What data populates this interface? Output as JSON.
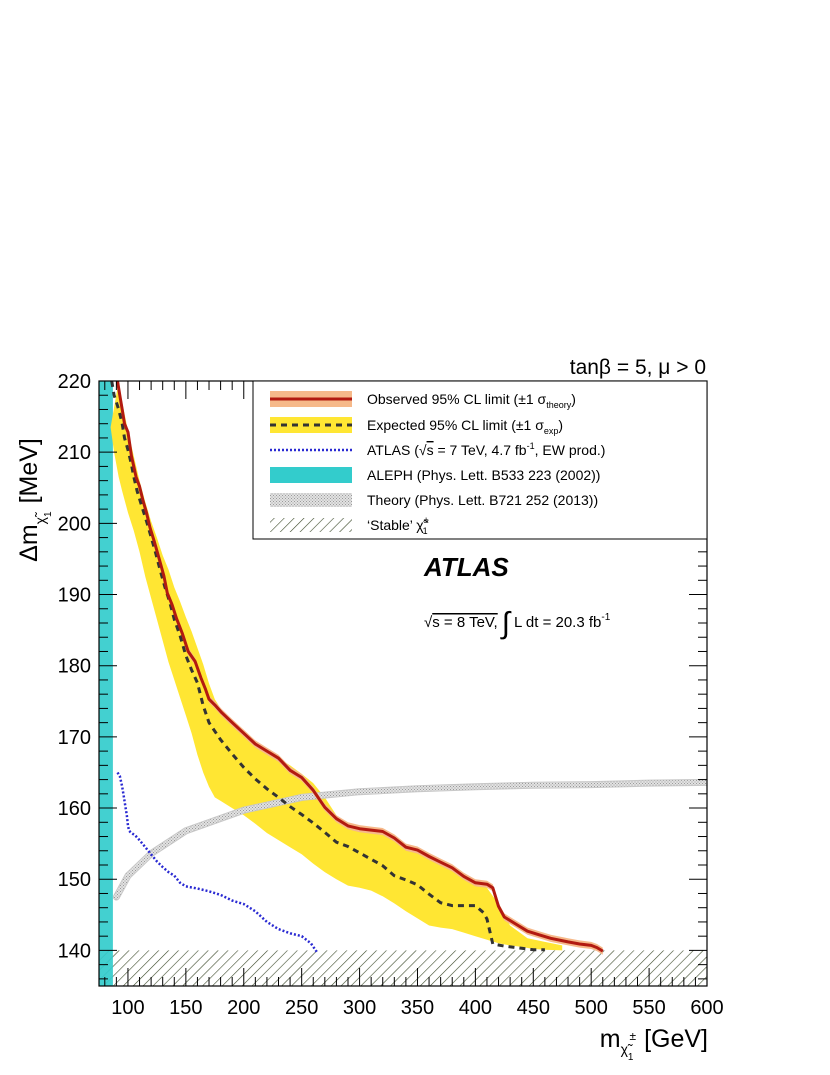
{
  "chart_data": {
    "type": "line",
    "top_label": "tanβ = 5, μ > 0",
    "xlabel": {
      "base": "m",
      "sub": "χ̃",
      "subsub": "1",
      "sup": "±",
      "unit": "[GeV]"
    },
    "ylabel": {
      "base": "Δm",
      "sub": "χ̃",
      "subsub": "1",
      "unit": "[MeV]"
    },
    "xlim": [
      75,
      600
    ],
    "ylim": [
      135,
      220
    ],
    "x_ticks": [
      100,
      150,
      200,
      250,
      300,
      350,
      400,
      450,
      500,
      550,
      600
    ],
    "y_ticks": [
      140,
      150,
      160,
      170,
      180,
      190,
      200,
      210,
      220
    ],
    "atlas_label": "ATLAS",
    "energy_label": {
      "sqrt_s": "s = 8 TeV,",
      "lumi": "L dt = 20.3 fb",
      "lumi_sup": "-1"
    },
    "legend": {
      "position": "top-right",
      "entries": [
        {
          "key": "observed",
          "label": "Observed 95% CL limit (±1 σ",
          "sub": "theory",
          "tail": ")"
        },
        {
          "key": "expected",
          "label": "Expected 95% CL limit (±1 σ",
          "sub": "exp",
          "tail": ")"
        },
        {
          "key": "atlas7",
          "label": "ATLAS (",
          "sqrt": "s",
          "mid": " = 7 TeV, 4.7 fb",
          "sup": "-1",
          "tail": ", EW prod.)"
        },
        {
          "key": "aleph",
          "label": "ALEPH (Phys. Lett. B533 223 (2002))"
        },
        {
          "key": "theory",
          "label": "Theory (Phys. Lett. B721 252 (2013))"
        },
        {
          "key": "stable",
          "label": "‘Stable’ χ̃",
          "sup": "±",
          "sub": "1"
        }
      ]
    },
    "colors": {
      "observed": "#b21a10",
      "observed_band": "#f6b98a",
      "expected": "#333333",
      "expected_band": "#ffe633",
      "atlas7": "#2a2ad2",
      "aleph": "#33cccc",
      "theory": "#c8c8c8",
      "stable_hatch": "#3c4a2a"
    },
    "series": [
      {
        "name": "Observed 95% CL limit",
        "x": [
          91,
          93,
          95,
          97,
          100,
          103,
          107,
          110,
          113,
          116,
          119,
          123,
          127,
          131,
          134,
          138,
          142,
          147,
          152,
          158,
          163,
          167,
          170,
          175,
          181,
          190,
          200,
          210,
          220,
          230,
          240,
          250,
          260,
          270,
          280,
          290,
          300,
          310,
          320,
          330,
          340,
          350,
          360,
          370,
          380,
          390,
          400,
          410,
          415,
          420,
          425,
          435,
          445,
          455,
          465,
          480,
          490,
          500,
          505,
          510
        ],
        "y": [
          220,
          218,
          216,
          214,
          212.8,
          209.5,
          206.5,
          205.2,
          203.2,
          201.5,
          199.4,
          197.3,
          195,
          192.6,
          190.2,
          188.6,
          186.6,
          184.5,
          182,
          180.6,
          178.3,
          176.7,
          175.3,
          174.5,
          173.4,
          172,
          170.5,
          169,
          168,
          167,
          165.3,
          164.3,
          162.5,
          160.1,
          158.5,
          157.5,
          157.1,
          156.9,
          156.7,
          155.8,
          154.5,
          154.1,
          153.2,
          152.4,
          151.6,
          150.4,
          149.5,
          149.3,
          148.8,
          146.2,
          144.7,
          143.7,
          142.7,
          142.2,
          141.7,
          141.2,
          140.9,
          140.7,
          140.4,
          139.9
        ]
      },
      {
        "name": "Expected 95% CL limit",
        "x": [
          86,
          88,
          92,
          95,
          97,
          100,
          103,
          105,
          108,
          112,
          116,
          120,
          124,
          128,
          132,
          136,
          140,
          145,
          150,
          155,
          160,
          165,
          170,
          175,
          180,
          190,
          200,
          210,
          220,
          230,
          240,
          250,
          260,
          270,
          280,
          290,
          300,
          310,
          320,
          330,
          340,
          350,
          360,
          370,
          380,
          390,
          400,
          407,
          410,
          415,
          425,
          440,
          450,
          460
        ],
        "y": [
          220,
          218,
          216,
          214,
          212,
          210.3,
          208.3,
          206.6,
          204.5,
          202.4,
          200.3,
          198.1,
          195.8,
          193.3,
          191,
          189,
          186.5,
          184.2,
          181.4,
          179.4,
          177.6,
          174.4,
          172,
          170.8,
          169.6,
          167.6,
          165.7,
          164.1,
          162.7,
          161.5,
          160.2,
          159.1,
          157.9,
          156.6,
          155.2,
          154.6,
          153.7,
          152.8,
          151.9,
          150.5,
          149.9,
          149.2,
          147.9,
          146.7,
          146.3,
          146.3,
          146.3,
          145.3,
          144.4,
          140.9,
          140.6,
          140.3,
          140.1,
          140.1
        ]
      },
      {
        "name": "ATLAS (7 TeV)",
        "x": [
          91,
          93,
          95,
          97,
          99,
          100,
          101,
          103,
          106,
          110,
          115,
          120,
          125,
          130,
          135,
          140,
          145,
          150,
          160,
          170,
          180,
          190,
          200,
          210,
          220,
          230,
          240,
          250,
          258,
          263
        ],
        "y": [
          165,
          164.5,
          163,
          161,
          159,
          157.5,
          156.8,
          156.5,
          156.2,
          155.5,
          154.5,
          153.5,
          152.5,
          151.7,
          151,
          150.5,
          149.5,
          149,
          148.7,
          148.3,
          147.8,
          147,
          146.5,
          145.5,
          144,
          143,
          142.4,
          142,
          141,
          139.8
        ]
      },
      {
        "name": "Theory",
        "x": [
          90,
          100,
          120,
          150,
          200,
          250,
          300,
          350,
          400,
          450,
          500,
          550,
          600
        ],
        "y": [
          147.5,
          150.5,
          153.6,
          156.8,
          159.7,
          161.5,
          162.3,
          162.7,
          163,
          163.2,
          163.3,
          163.5,
          163.6
        ]
      }
    ],
    "bands": {
      "expected_upper": {
        "x": [
          92,
          95,
          100,
          105,
          110,
          115,
          120,
          125,
          130,
          135,
          140,
          145,
          150,
          155,
          160,
          165,
          170,
          175,
          180,
          190,
          200,
          210,
          220,
          230,
          240,
          250,
          260,
          270,
          280,
          290,
          300,
          310,
          320,
          330,
          340,
          350,
          360,
          370,
          380,
          390,
          400,
          410,
          420,
          430,
          445,
          460,
          475
        ],
        "y": [
          220,
          217,
          213,
          209.5,
          206,
          203,
          200.3,
          198,
          195.5,
          193.5,
          191,
          189,
          186.8,
          184.8,
          182.5,
          180.2,
          177.5,
          175.3,
          174,
          172.3,
          170.6,
          169.3,
          168.2,
          167,
          166,
          164.8,
          163.5,
          161.5,
          159,
          157.7,
          157.3,
          157,
          156.5,
          155.4,
          154.6,
          154,
          153.1,
          152.5,
          151.6,
          150.6,
          149.8,
          148.8,
          146.5,
          143.5,
          141.7,
          141.2,
          140.7
        ]
      },
      "expected_lower": {
        "x": [
          85,
          88,
          92,
          95,
          100,
          105,
          110,
          115,
          120,
          125,
          130,
          135,
          140,
          145,
          150,
          155,
          160,
          165,
          170,
          175,
          180,
          190,
          200,
          210,
          220,
          230,
          240,
          250,
          260,
          270,
          280,
          290,
          300,
          310,
          320,
          330,
          340,
          350,
          360,
          370,
          380,
          390,
          400,
          410,
          420,
          430,
          440,
          450,
          460,
          475
        ],
        "y": [
          213.5,
          210,
          206.5,
          204.5,
          201.5,
          199,
          196,
          192.5,
          189.5,
          186.5,
          183.5,
          180.5,
          178,
          175.5,
          173,
          170.5,
          167.5,
          165,
          163,
          161.5,
          161,
          160,
          159,
          157.8,
          156.5,
          155.5,
          154.5,
          153.5,
          152.2,
          151,
          150,
          149.1,
          148.8,
          148.4,
          147.6,
          146.6,
          145.5,
          144.5,
          143.5,
          143.2,
          143,
          142.5,
          142,
          141.5,
          141,
          140.7,
          140.5,
          140.2,
          140.1,
          140
        ]
      },
      "observed_halfwidth": 0.5
    },
    "aleph_region": {
      "x": [
        75,
        87
      ],
      "y": [
        135,
        220
      ]
    },
    "stable_region": {
      "x": [
        75,
        600
      ],
      "y": [
        135,
        140
      ]
    }
  }
}
